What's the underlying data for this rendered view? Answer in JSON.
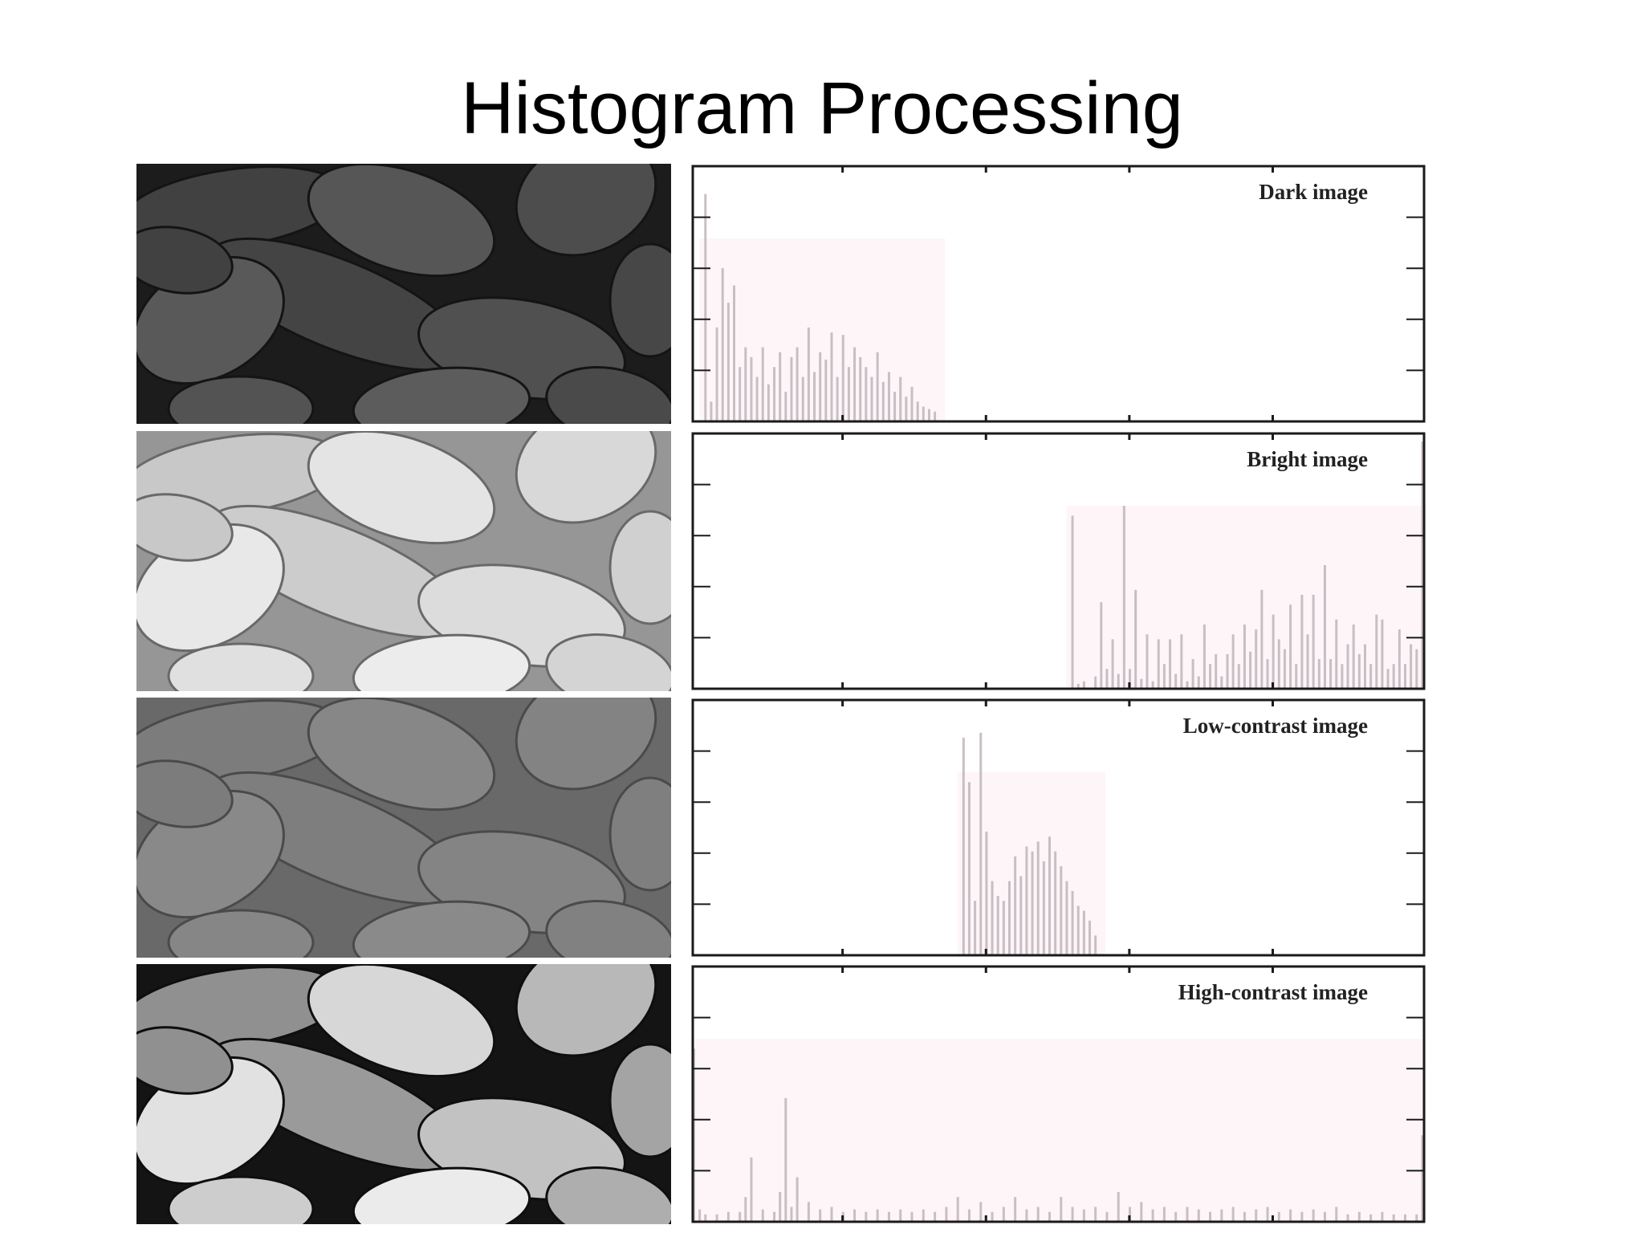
{
  "slide": {
    "title": "Histogram Processing"
  },
  "colors": {
    "bar": "#c8bfc4",
    "plot_tint": "#fdf5f8",
    "frame": "#1a1a1a"
  },
  "panels": [
    {
      "image_tone": "dark",
      "image_base": 28,
      "image_highlight": 95
    },
    {
      "image_tone": "bright",
      "image_base": 150,
      "image_highlight": 240
    },
    {
      "image_tone": "low-contrast",
      "image_base": 105,
      "image_highlight": 140
    },
    {
      "image_tone": "high-contrast",
      "image_base": 20,
      "image_highlight": 245
    }
  ],
  "chart_data": [
    {
      "type": "bar",
      "title": "Dark image",
      "xlim": [
        0,
        255
      ],
      "ylim": [
        0,
        1
      ],
      "bins": [
        [
          4,
          0.92
        ],
        [
          6,
          0.08
        ],
        [
          8,
          0.38
        ],
        [
          10,
          0.62
        ],
        [
          12,
          0.48
        ],
        [
          14,
          0.55
        ],
        [
          16,
          0.22
        ],
        [
          18,
          0.3
        ],
        [
          20,
          0.26
        ],
        [
          22,
          0.18
        ],
        [
          24,
          0.3
        ],
        [
          26,
          0.15
        ],
        [
          28,
          0.22
        ],
        [
          30,
          0.28
        ],
        [
          32,
          0.12
        ],
        [
          34,
          0.26
        ],
        [
          36,
          0.3
        ],
        [
          38,
          0.18
        ],
        [
          40,
          0.38
        ],
        [
          42,
          0.2
        ],
        [
          44,
          0.28
        ],
        [
          46,
          0.25
        ],
        [
          48,
          0.36
        ],
        [
          50,
          0.18
        ],
        [
          52,
          0.35
        ],
        [
          54,
          0.22
        ],
        [
          56,
          0.3
        ],
        [
          58,
          0.26
        ],
        [
          60,
          0.22
        ],
        [
          62,
          0.18
        ],
        [
          64,
          0.28
        ],
        [
          66,
          0.16
        ],
        [
          68,
          0.2
        ],
        [
          70,
          0.12
        ],
        [
          72,
          0.18
        ],
        [
          74,
          0.1
        ],
        [
          76,
          0.14
        ],
        [
          78,
          0.08
        ],
        [
          80,
          0.06
        ],
        [
          82,
          0.05
        ],
        [
          84,
          0.04
        ]
      ]
    },
    {
      "type": "bar",
      "title": "Bright image",
      "xlim": [
        0,
        255
      ],
      "ylim": [
        0,
        1
      ],
      "bins": [
        [
          132,
          0.7
        ],
        [
          134,
          0.02
        ],
        [
          136,
          0.03
        ],
        [
          140,
          0.05
        ],
        [
          142,
          0.35
        ],
        [
          144,
          0.08
        ],
        [
          146,
          0.2
        ],
        [
          148,
          0.06
        ],
        [
          150,
          0.74
        ],
        [
          152,
          0.08
        ],
        [
          154,
          0.4
        ],
        [
          156,
          0.04
        ],
        [
          158,
          0.22
        ],
        [
          160,
          0.03
        ],
        [
          162,
          0.2
        ],
        [
          164,
          0.1
        ],
        [
          166,
          0.2
        ],
        [
          168,
          0.06
        ],
        [
          170,
          0.22
        ],
        [
          172,
          0.03
        ],
        [
          174,
          0.12
        ],
        [
          176,
          0.05
        ],
        [
          178,
          0.26
        ],
        [
          180,
          0.1
        ],
        [
          182,
          0.14
        ],
        [
          184,
          0.05
        ],
        [
          186,
          0.14
        ],
        [
          188,
          0.22
        ],
        [
          190,
          0.1
        ],
        [
          192,
          0.26
        ],
        [
          194,
          0.15
        ],
        [
          196,
          0.24
        ],
        [
          198,
          0.4
        ],
        [
          200,
          0.12
        ],
        [
          202,
          0.3
        ],
        [
          204,
          0.2
        ],
        [
          206,
          0.16
        ],
        [
          208,
          0.34
        ],
        [
          210,
          0.1
        ],
        [
          212,
          0.38
        ],
        [
          214,
          0.22
        ],
        [
          216,
          0.38
        ],
        [
          218,
          0.12
        ],
        [
          220,
          0.5
        ],
        [
          222,
          0.12
        ],
        [
          224,
          0.28
        ],
        [
          226,
          0.1
        ],
        [
          228,
          0.18
        ],
        [
          230,
          0.26
        ],
        [
          232,
          0.14
        ],
        [
          234,
          0.18
        ],
        [
          236,
          0.1
        ],
        [
          238,
          0.3
        ],
        [
          240,
          0.28
        ],
        [
          242,
          0.08
        ],
        [
          244,
          0.1
        ],
        [
          246,
          0.24
        ],
        [
          248,
          0.1
        ],
        [
          250,
          0.18
        ],
        [
          252,
          0.16
        ],
        [
          254,
          1.0
        ]
      ]
    },
    {
      "type": "bar",
      "title": "Low-contrast image",
      "xlim": [
        0,
        255
      ],
      "ylim": [
        0,
        1
      ],
      "bins": [
        [
          94,
          0.88
        ],
        [
          96,
          0.7
        ],
        [
          98,
          0.22
        ],
        [
          100,
          0.9
        ],
        [
          102,
          0.5
        ],
        [
          104,
          0.3
        ],
        [
          106,
          0.24
        ],
        [
          108,
          0.22
        ],
        [
          110,
          0.3
        ],
        [
          112,
          0.4
        ],
        [
          114,
          0.32
        ],
        [
          116,
          0.44
        ],
        [
          118,
          0.42
        ],
        [
          120,
          0.46
        ],
        [
          122,
          0.38
        ],
        [
          124,
          0.48
        ],
        [
          126,
          0.42
        ],
        [
          128,
          0.36
        ],
        [
          130,
          0.3
        ],
        [
          132,
          0.26
        ],
        [
          134,
          0.2
        ],
        [
          136,
          0.18
        ],
        [
          138,
          0.14
        ],
        [
          140,
          0.08
        ]
      ]
    },
    {
      "type": "bar",
      "title": "High-contrast image",
      "xlim": [
        0,
        255
      ],
      "ylim": [
        0,
        1
      ],
      "bins": [
        [
          0,
          0.7
        ],
        [
          2,
          0.05
        ],
        [
          4,
          0.03
        ],
        [
          8,
          0.03
        ],
        [
          12,
          0.04
        ],
        [
          16,
          0.04
        ],
        [
          18,
          0.1
        ],
        [
          20,
          0.26
        ],
        [
          24,
          0.05
        ],
        [
          28,
          0.04
        ],
        [
          30,
          0.12
        ],
        [
          32,
          0.5
        ],
        [
          34,
          0.06
        ],
        [
          36,
          0.18
        ],
        [
          40,
          0.08
        ],
        [
          44,
          0.05
        ],
        [
          48,
          0.06
        ],
        [
          52,
          0.04
        ],
        [
          56,
          0.05
        ],
        [
          60,
          0.04
        ],
        [
          64,
          0.05
        ],
        [
          68,
          0.04
        ],
        [
          72,
          0.05
        ],
        [
          76,
          0.04
        ],
        [
          80,
          0.05
        ],
        [
          84,
          0.04
        ],
        [
          88,
          0.06
        ],
        [
          92,
          0.1
        ],
        [
          96,
          0.05
        ],
        [
          100,
          0.08
        ],
        [
          104,
          0.04
        ],
        [
          108,
          0.06
        ],
        [
          112,
          0.1
        ],
        [
          116,
          0.05
        ],
        [
          120,
          0.06
        ],
        [
          124,
          0.04
        ],
        [
          128,
          0.1
        ],
        [
          132,
          0.06
        ],
        [
          136,
          0.05
        ],
        [
          140,
          0.06
        ],
        [
          144,
          0.04
        ],
        [
          148,
          0.12
        ],
        [
          152,
          0.06
        ],
        [
          156,
          0.08
        ],
        [
          160,
          0.05
        ],
        [
          164,
          0.06
        ],
        [
          168,
          0.04
        ],
        [
          172,
          0.06
        ],
        [
          176,
          0.05
        ],
        [
          180,
          0.04
        ],
        [
          184,
          0.05
        ],
        [
          188,
          0.06
        ],
        [
          192,
          0.04
        ],
        [
          196,
          0.05
        ],
        [
          200,
          0.06
        ],
        [
          204,
          0.04
        ],
        [
          208,
          0.05
        ],
        [
          212,
          0.04
        ],
        [
          216,
          0.05
        ],
        [
          220,
          0.04
        ],
        [
          224,
          0.06
        ],
        [
          228,
          0.03
        ],
        [
          232,
          0.04
        ],
        [
          236,
          0.03
        ],
        [
          240,
          0.04
        ],
        [
          244,
          0.03
        ],
        [
          248,
          0.03
        ],
        [
          252,
          0.03
        ],
        [
          254,
          0.35
        ]
      ]
    }
  ]
}
